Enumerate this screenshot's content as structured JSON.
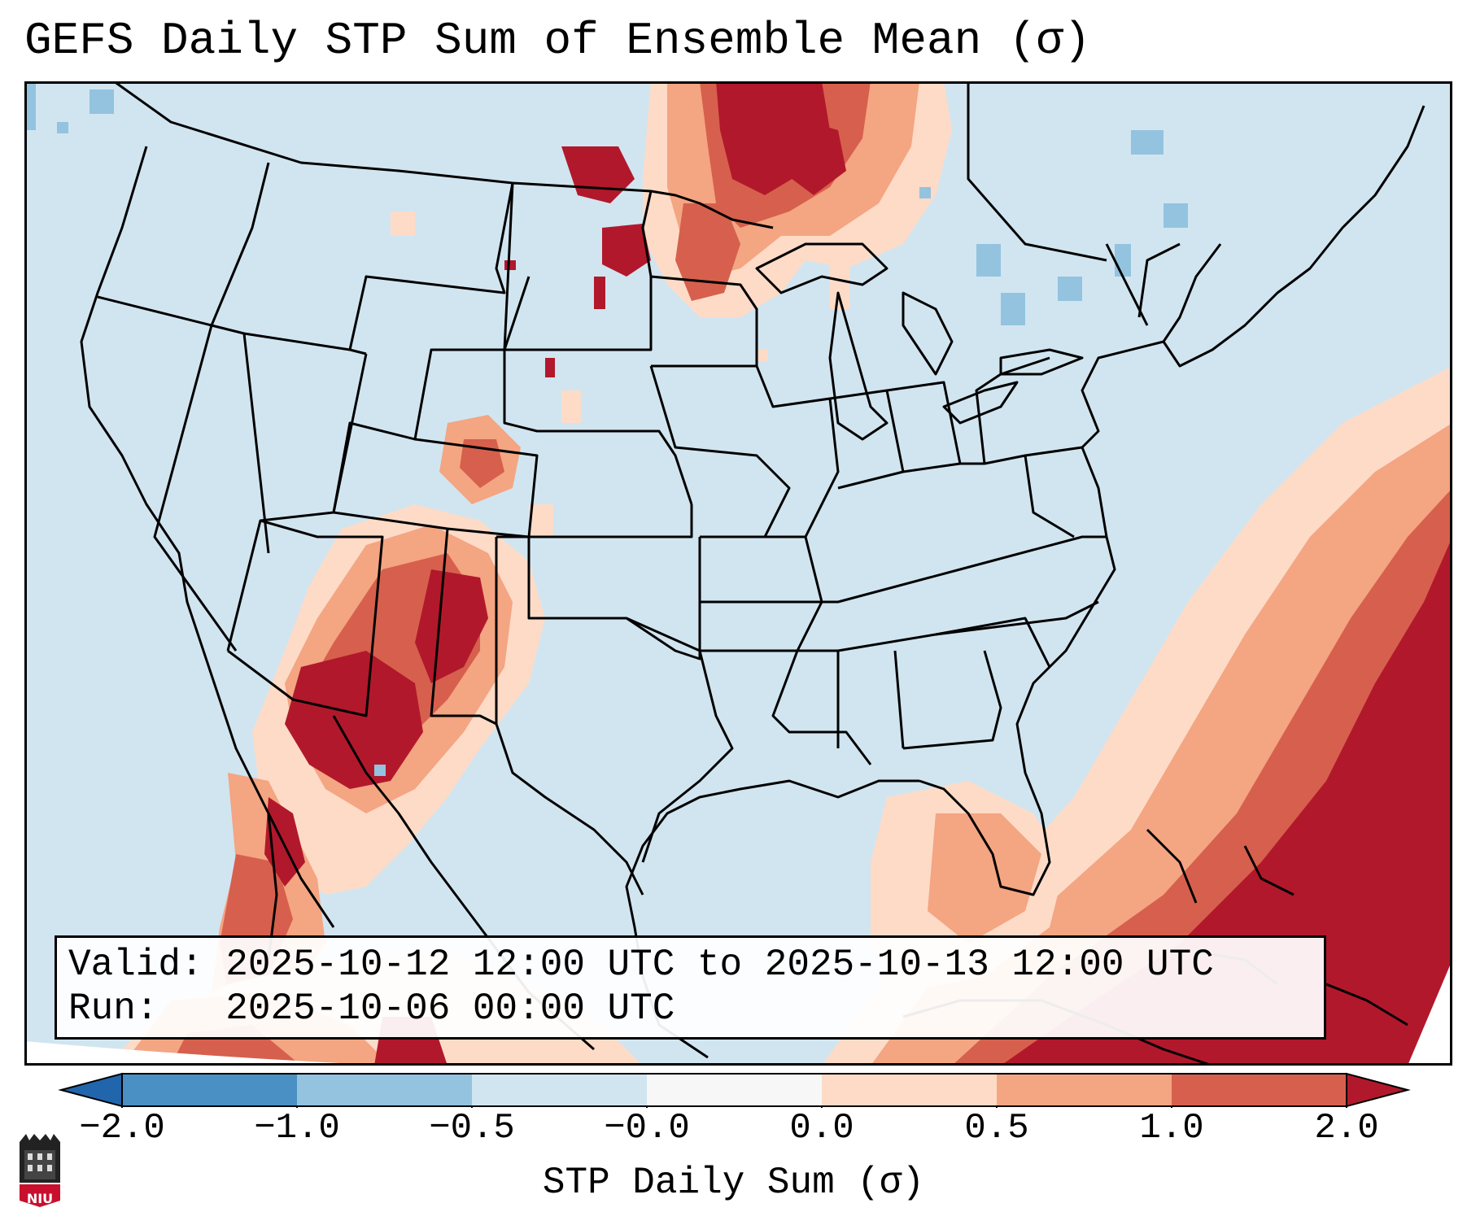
{
  "title": "GEFS Daily STP Sum of Ensemble Mean (σ)",
  "info": {
    "valid_label": "Valid:",
    "valid_value": "2025-10-12 12:00 UTC to 2025-10-13 12:00 UTC",
    "run_label": "Run:",
    "run_value": "2025-10-06 00:00 UTC"
  },
  "colorbar": {
    "label": "STP Daily Sum (σ)",
    "ticks": [
      "−2.0",
      "−1.0",
      "−0.5",
      "−0.0",
      "0.0",
      "0.5",
      "1.0",
      "2.0"
    ],
    "bins": [
      {
        "from": -2.0,
        "to": -1.0,
        "color": "#4a90c4"
      },
      {
        "from": -1.0,
        "to": -0.5,
        "color": "#93c3df"
      },
      {
        "from": -0.5,
        "to": -0.0,
        "color": "#d1e5f0"
      },
      {
        "from": -0.0,
        "to": 0.0,
        "color": "#f7f7f7"
      },
      {
        "from": 0.0,
        "to": 0.5,
        "color": "#fddbc7"
      },
      {
        "from": 0.5,
        "to": 1.0,
        "color": "#f4a582"
      },
      {
        "from": 1.0,
        "to": 2.0,
        "color": "#d6604d"
      }
    ],
    "under_color": "#2166ac",
    "over_color": "#b2182b"
  },
  "map": {
    "background_color": "#d1e5f0",
    "regions": [
      {
        "name": "Southwest US / Four Corners",
        "level": "high"
      },
      {
        "name": "Northern Plains / Upper Midwest",
        "level": "high"
      },
      {
        "name": "Western Atlantic",
        "level": "high"
      },
      {
        "name": "Gulf of Mexico / Caribbean",
        "level": "high"
      },
      {
        "name": "Northeast / Great Lakes",
        "level": "low"
      }
    ]
  },
  "logo": {
    "text": "NIU"
  }
}
